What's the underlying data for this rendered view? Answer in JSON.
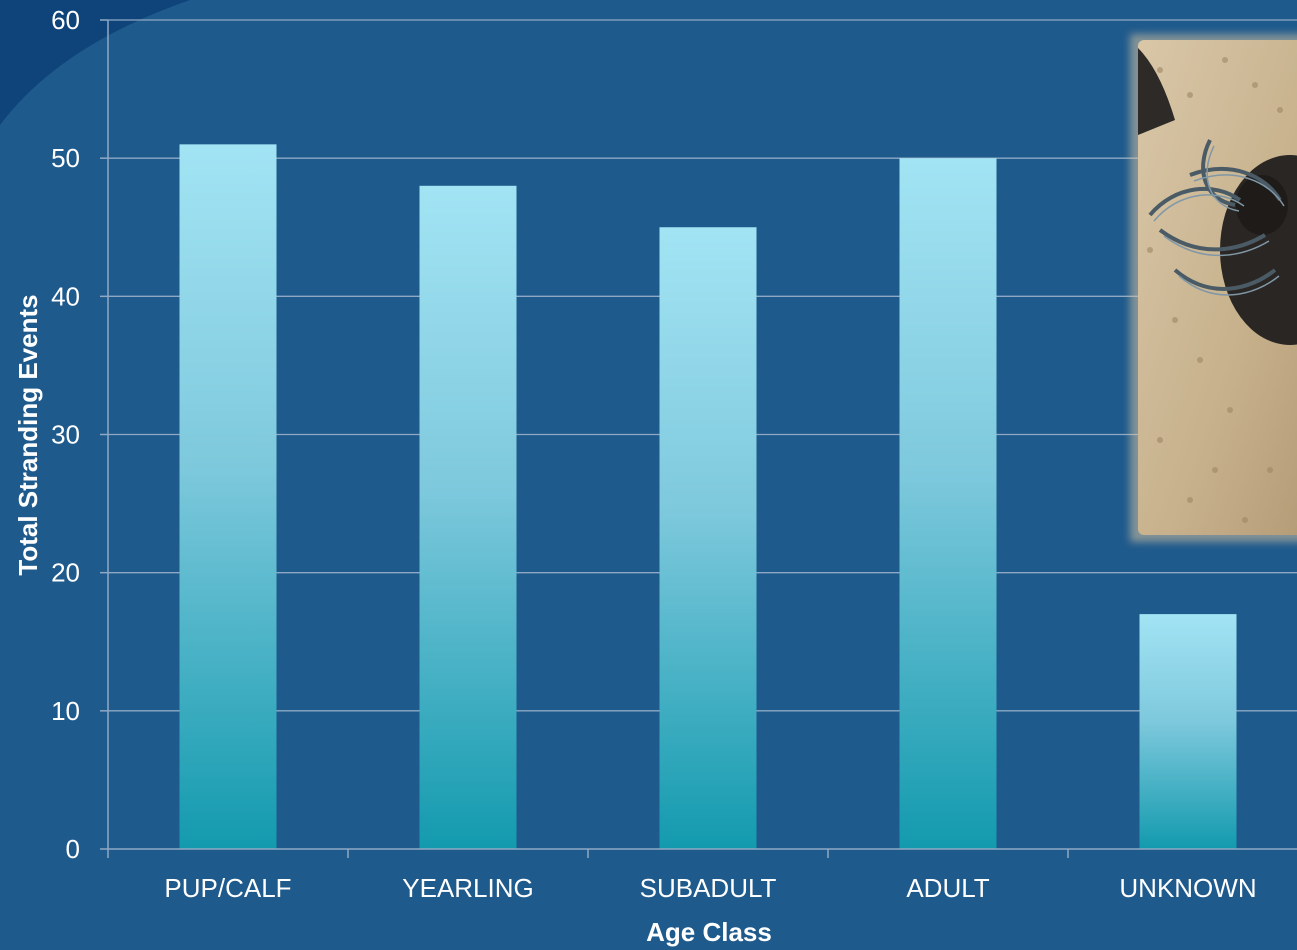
{
  "chart_data": {
    "type": "bar",
    "title": "",
    "xlabel": "Age Class",
    "ylabel": "Total Stranding Events",
    "categories": [
      "PUP/CALF",
      "YEARLING",
      "SUBADULT",
      "ADULT",
      "UNKNOWN"
    ],
    "values": [
      51,
      48,
      45,
      50,
      17
    ],
    "ylim": [
      0,
      60
    ],
    "yticks": [
      0,
      10,
      20,
      30,
      40,
      50,
      60
    ],
    "grid": true,
    "legend": "none"
  },
  "colors": {
    "background": "#1f5a8c",
    "corner_accent": "#0f447a",
    "gridline": "#8fa9c4",
    "bar_top": "#a2e4f4",
    "bar_bottom": "#139aae",
    "text": "#ffffff"
  },
  "photo": {
    "icon": "entangled-seal-on-beach-photo"
  }
}
